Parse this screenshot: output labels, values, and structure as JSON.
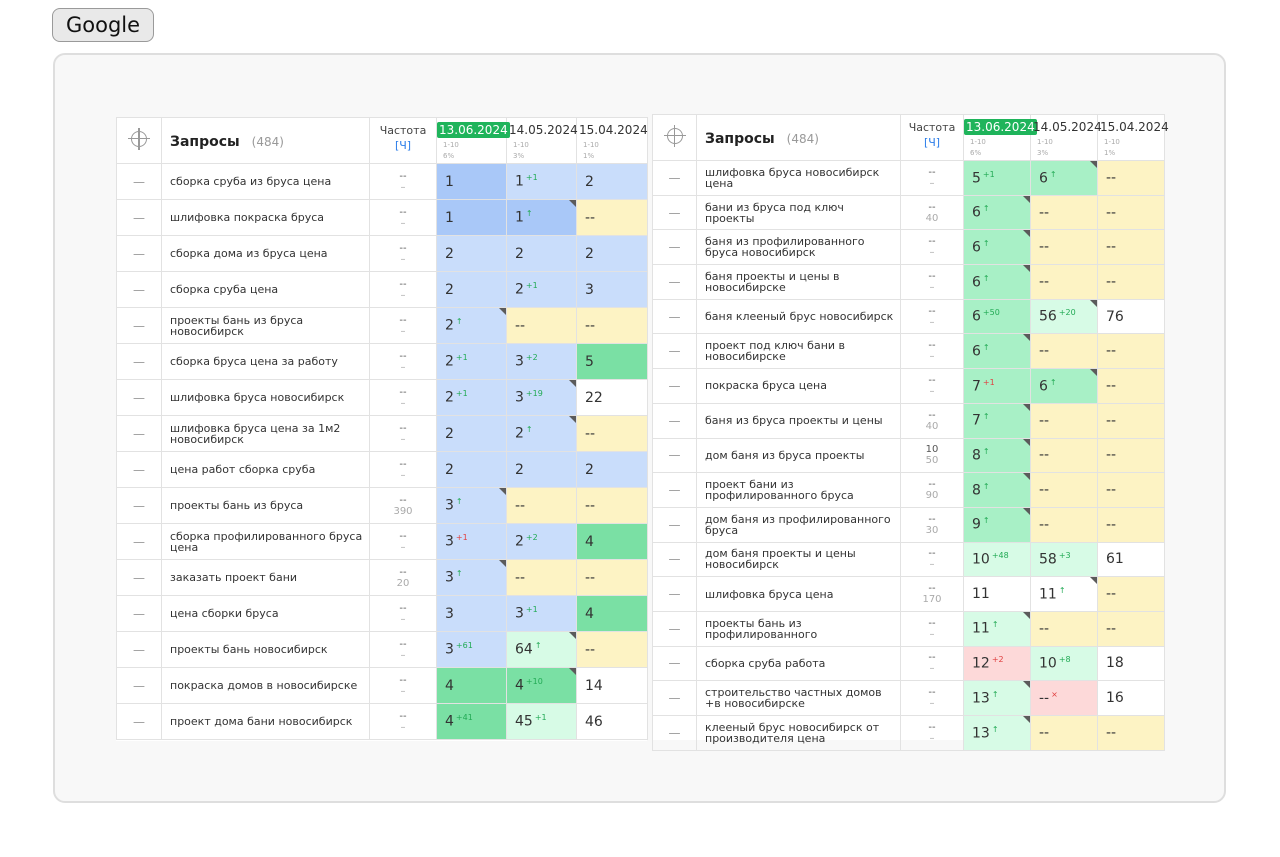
{
  "button": {
    "label": "Google"
  },
  "panels": [
    {
      "header": {
        "title": "Запросы",
        "count": "(484)",
        "freq_label": "Частота",
        "freq_sub": "[Ч]"
      },
      "dates": [
        {
          "label": "13.06.2024",
          "sub1": "1-10",
          "sub2": "6%",
          "active": true
        },
        {
          "label": "14.05.2024",
          "sub1": "1-10",
          "sub2": "3%",
          "active": false
        },
        {
          "label": "15.04.2024",
          "sub1": "1-10",
          "sub2": "1%",
          "active": false
        }
      ],
      "rows": [
        {
          "q": "сборка сруба из бруса цена",
          "f": "--",
          "fs": "–",
          "c": [
            {
              "v": "1",
              "c": "b1"
            },
            {
              "v": "1",
              "d": "+1",
              "t": "up",
              "c": "b2"
            },
            {
              "v": "2",
              "c": "b2"
            }
          ]
        },
        {
          "q": "шлифовка покраска бруса",
          "f": "--",
          "fs": "–",
          "c": [
            {
              "v": "1",
              "c": "b1"
            },
            {
              "v": "1",
              "d": "↑",
              "t": "up",
              "c": "b1",
              "k": 1
            },
            {
              "v": "--",
              "c": "y"
            }
          ]
        },
        {
          "q": "сборка дома из бруса цена",
          "f": "--",
          "fs": "–",
          "c": [
            {
              "v": "2",
              "c": "b2"
            },
            {
              "v": "2",
              "c": "b2"
            },
            {
              "v": "2",
              "c": "b2"
            }
          ]
        },
        {
          "q": "сборка сруба цена",
          "f": "--",
          "fs": "–",
          "c": [
            {
              "v": "2",
              "c": "b2"
            },
            {
              "v": "2",
              "d": "+1",
              "t": "up",
              "c": "b2"
            },
            {
              "v": "3",
              "c": "b2"
            }
          ]
        },
        {
          "q": "проекты бань из бруса новосибирск",
          "f": "--",
          "fs": "–",
          "c": [
            {
              "v": "2",
              "d": "↑",
              "t": "up",
              "c": "b2",
              "k": 1
            },
            {
              "v": "--",
              "c": "y"
            },
            {
              "v": "--",
              "c": "y"
            }
          ]
        },
        {
          "q": "сборка бруса цена за работу",
          "f": "--",
          "fs": "–",
          "c": [
            {
              "v": "2",
              "d": "+1",
              "t": "up",
              "c": "b2"
            },
            {
              "v": "3",
              "d": "+2",
              "t": "up",
              "c": "b2"
            },
            {
              "v": "5",
              "c": "g1"
            }
          ]
        },
        {
          "q": "шлифовка бруса новосибирск",
          "f": "--",
          "fs": "–",
          "c": [
            {
              "v": "2",
              "d": "+1",
              "t": "up",
              "c": "b2"
            },
            {
              "v": "3",
              "d": "+19",
              "t": "up",
              "c": "b2",
              "k": 1
            },
            {
              "v": "22",
              "c": "w"
            }
          ]
        },
        {
          "q": "шлифовка бруса цена за 1м2 новосибирск",
          "f": "--",
          "fs": "–",
          "c": [
            {
              "v": "2",
              "c": "b2"
            },
            {
              "v": "2",
              "d": "↑",
              "t": "up",
              "c": "b2",
              "k": 1
            },
            {
              "v": "--",
              "c": "y"
            }
          ]
        },
        {
          "q": "цена работ сборка сруба",
          "f": "--",
          "fs": "–",
          "c": [
            {
              "v": "2",
              "c": "b2"
            },
            {
              "v": "2",
              "c": "b2"
            },
            {
              "v": "2",
              "c": "b2"
            }
          ]
        },
        {
          "q": "проекты бань из бруса",
          "f": "--",
          "fs": "390",
          "c": [
            {
              "v": "3",
              "d": "↑",
              "t": "up",
              "c": "b2",
              "k": 1
            },
            {
              "v": "--",
              "c": "y"
            },
            {
              "v": "--",
              "c": "y"
            }
          ]
        },
        {
          "q": "сборка профилированного бруса цена",
          "f": "--",
          "fs": "–",
          "c": [
            {
              "v": "3",
              "d": "+1",
              "t": "down",
              "c": "b2"
            },
            {
              "v": "2",
              "d": "+2",
              "t": "up",
              "c": "b2"
            },
            {
              "v": "4",
              "c": "g1"
            }
          ]
        },
        {
          "q": "заказать проект бани",
          "f": "--",
          "fs": "20",
          "c": [
            {
              "v": "3",
              "d": "↑",
              "t": "up",
              "c": "b2",
              "k": 1
            },
            {
              "v": "--",
              "c": "y"
            },
            {
              "v": "--",
              "c": "y"
            }
          ]
        },
        {
          "q": "цена сборки бруса",
          "f": "--",
          "fs": "–",
          "c": [
            {
              "v": "3",
              "c": "b2"
            },
            {
              "v": "3",
              "d": "+1",
              "t": "up",
              "c": "b2"
            },
            {
              "v": "4",
              "c": "g1"
            }
          ]
        },
        {
          "q": "проекты бань новосибирск",
          "f": "--",
          "fs": "–",
          "c": [
            {
              "v": "3",
              "d": "+61",
              "t": "up",
              "c": "b2"
            },
            {
              "v": "64",
              "d": "↑",
              "t": "up",
              "c": "g3",
              "k": 1
            },
            {
              "v": "--",
              "c": "y"
            }
          ]
        },
        {
          "q": "покраска домов в новосибирске",
          "f": "--",
          "fs": "–",
          "c": [
            {
              "v": "4",
              "c": "g1"
            },
            {
              "v": "4",
              "d": "+10",
              "t": "up",
              "c": "g1",
              "k": 1
            },
            {
              "v": "14",
              "c": "w"
            }
          ]
        },
        {
          "q": "проект дома бани новосибирск",
          "f": "--",
          "fs": "–",
          "c": [
            {
              "v": "4",
              "d": "+41",
              "t": "up",
              "c": "g1"
            },
            {
              "v": "45",
              "d": "+1",
              "t": "up",
              "c": "g3"
            },
            {
              "v": "46",
              "c": "w"
            }
          ]
        }
      ]
    },
    {
      "header": {
        "title": "Запросы",
        "count": "(484)",
        "freq_label": "Частота",
        "freq_sub": "[Ч]"
      },
      "dates": [
        {
          "label": "13.06.2024",
          "sub1": "1-10",
          "sub2": "6%",
          "active": true
        },
        {
          "label": "14.05.2024",
          "sub1": "1-10",
          "sub2": "3%",
          "active": false
        },
        {
          "label": "15.04.2024",
          "sub1": "1-10",
          "sub2": "1%",
          "active": false
        }
      ],
      "rows": [
        {
          "q": "шлифовка бруса новосибирск цена",
          "f": "--",
          "fs": "–",
          "c": [
            {
              "v": "5",
              "d": "+1",
              "t": "up",
              "c": "g2"
            },
            {
              "v": "6",
              "d": "↑",
              "t": "up",
              "c": "g2",
              "k": 1
            },
            {
              "v": "--",
              "c": "y"
            }
          ]
        },
        {
          "q": "бани из бруса под ключ проекты",
          "f": "--",
          "fs": "40",
          "c": [
            {
              "v": "6",
              "d": "↑",
              "t": "up",
              "c": "g2",
              "k": 1
            },
            {
              "v": "--",
              "c": "y"
            },
            {
              "v": "--",
              "c": "y"
            }
          ]
        },
        {
          "q": "баня из профилированного бруса новосибирск",
          "f": "--",
          "fs": "–",
          "c": [
            {
              "v": "6",
              "d": "↑",
              "t": "up",
              "c": "g2",
              "k": 1
            },
            {
              "v": "--",
              "c": "y"
            },
            {
              "v": "--",
              "c": "y"
            }
          ]
        },
        {
          "q": "баня проекты и цены в новосибирске",
          "f": "--",
          "fs": "–",
          "c": [
            {
              "v": "6",
              "d": "↑",
              "t": "up",
              "c": "g2",
              "k": 1
            },
            {
              "v": "--",
              "c": "y"
            },
            {
              "v": "--",
              "c": "y"
            }
          ]
        },
        {
          "q": "баня клееный брус новосибирск",
          "f": "--",
          "fs": "–",
          "c": [
            {
              "v": "6",
              "d": "+50",
              "t": "up",
              "c": "g2"
            },
            {
              "v": "56",
              "d": "+20",
              "t": "up",
              "c": "g3",
              "k": 1
            },
            {
              "v": "76",
              "c": "w"
            }
          ]
        },
        {
          "q": "проект под ключ бани в новосибирске",
          "f": "--",
          "fs": "–",
          "c": [
            {
              "v": "6",
              "d": "↑",
              "t": "up",
              "c": "g2",
              "k": 1
            },
            {
              "v": "--",
              "c": "y"
            },
            {
              "v": "--",
              "c": "y"
            }
          ]
        },
        {
          "q": "покраска бруса цена",
          "f": "--",
          "fs": "–",
          "c": [
            {
              "v": "7",
              "d": "+1",
              "t": "down",
              "c": "g2"
            },
            {
              "v": "6",
              "d": "↑",
              "t": "up",
              "c": "g2",
              "k": 1
            },
            {
              "v": "--",
              "c": "y"
            }
          ]
        },
        {
          "q": "баня из бруса проекты и цены",
          "f": "--",
          "fs": "40",
          "c": [
            {
              "v": "7",
              "d": "↑",
              "t": "up",
              "c": "g2",
              "k": 1
            },
            {
              "v": "--",
              "c": "y"
            },
            {
              "v": "--",
              "c": "y"
            }
          ]
        },
        {
          "q": "дом баня из бруса проекты",
          "f": "10",
          "fs": "50",
          "c": [
            {
              "v": "8",
              "d": "↑",
              "t": "up",
              "c": "g2",
              "k": 1
            },
            {
              "v": "--",
              "c": "y"
            },
            {
              "v": "--",
              "c": "y"
            }
          ]
        },
        {
          "q": "проект бани из профилированного бруса",
          "f": "--",
          "fs": "90",
          "c": [
            {
              "v": "8",
              "d": "↑",
              "t": "up",
              "c": "g2",
              "k": 1
            },
            {
              "v": "--",
              "c": "y"
            },
            {
              "v": "--",
              "c": "y"
            }
          ]
        },
        {
          "q": "дом баня из профилированного бруса",
          "f": "--",
          "fs": "30",
          "c": [
            {
              "v": "9",
              "d": "↑",
              "t": "up",
              "c": "g2",
              "k": 1
            },
            {
              "v": "--",
              "c": "y"
            },
            {
              "v": "--",
              "c": "y"
            }
          ]
        },
        {
          "q": "дом баня проекты и цены новосибирск",
          "f": "--",
          "fs": "–",
          "c": [
            {
              "v": "10",
              "d": "+48",
              "t": "up",
              "c": "g3"
            },
            {
              "v": "58",
              "d": "+3",
              "t": "up",
              "c": "g3"
            },
            {
              "v": "61",
              "c": "w"
            }
          ]
        },
        {
          "q": "шлифовка бруса цена",
          "f": "--",
          "fs": "170",
          "c": [
            {
              "v": "11",
              "c": "w"
            },
            {
              "v": "11",
              "d": "↑",
              "t": "up",
              "c": "w",
              "k": 1
            },
            {
              "v": "--",
              "c": "y"
            }
          ]
        },
        {
          "q": "проекты бань из профилированного",
          "f": "--",
          "fs": "–",
          "c": [
            {
              "v": "11",
              "d": "↑",
              "t": "up",
              "c": "g3",
              "k": 1
            },
            {
              "v": "--",
              "c": "y"
            },
            {
              "v": "--",
              "c": "y"
            }
          ]
        },
        {
          "q": "сборка сруба работа",
          "f": "--",
          "fs": "–",
          "c": [
            {
              "v": "12",
              "d": "+2",
              "t": "down",
              "c": "r"
            },
            {
              "v": "10",
              "d": "+8",
              "t": "up",
              "c": "g3"
            },
            {
              "v": "18",
              "c": "w"
            }
          ]
        },
        {
          "q": "строительство частных домов +в новосибирске",
          "f": "--",
          "fs": "–",
          "c": [
            {
              "v": "13",
              "d": "↑",
              "t": "up",
              "c": "g3",
              "k": 1
            },
            {
              "v": "--",
              "d": "×",
              "t": "down",
              "c": "r"
            },
            {
              "v": "16",
              "c": "w"
            }
          ]
        },
        {
          "q": "клееный брус новосибирск от производителя цена",
          "f": "--",
          "fs": "–",
          "c": [
            {
              "v": "13",
              "d": "↑",
              "t": "up",
              "c": "g3",
              "k": 1
            },
            {
              "v": "--",
              "c": "y"
            },
            {
              "v": "--",
              "c": "y"
            }
          ]
        }
      ]
    }
  ]
}
